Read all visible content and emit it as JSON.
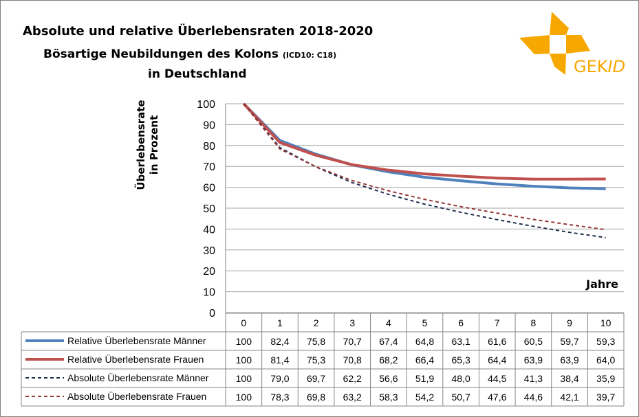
{
  "logo": {
    "text": "GEKID",
    "color": "#f7a800"
  },
  "chart_data": {
    "type": "line",
    "title": "Absolute und relative Überlebensraten 2018-2020",
    "subtitle": "Bösartige Neubildungen des Kolons",
    "subtitle_code": "(ICD10: C18)",
    "subtitle2": "in Deutschland",
    "ylabel": "Überlebensrate in Prozent",
    "ylabel_line1": "Überlebensrate",
    "ylabel_line2": "in Prozent",
    "xlabel": "Jahre",
    "ylim": [
      0,
      100
    ],
    "yticks": [
      "0",
      "10",
      "20",
      "30",
      "40",
      "50",
      "60",
      "70",
      "80",
      "90",
      "100"
    ],
    "grid": true,
    "legend": "data-table",
    "categories": [
      "0",
      "1",
      "2",
      "3",
      "4",
      "5",
      "6",
      "7",
      "8",
      "9",
      "10"
    ],
    "series": [
      {
        "name": "Relative Überlebensrate Männer",
        "color": "#4f81bd",
        "style": "solid",
        "values": [
          100,
          82.4,
          75.8,
          70.7,
          67.4,
          64.8,
          63.1,
          61.6,
          60.5,
          59.7,
          59.3
        ],
        "labels": [
          "100",
          "82,4",
          "75,8",
          "70,7",
          "67,4",
          "64,8",
          "63,1",
          "61,6",
          "60,5",
          "59,7",
          "59,3"
        ]
      },
      {
        "name": "Relative Überlebensrate Frauen",
        "color": "#c0504d",
        "style": "solid",
        "values": [
          100,
          81.4,
          75.3,
          70.8,
          68.2,
          66.4,
          65.3,
          64.4,
          63.9,
          63.9,
          64.0
        ],
        "labels": [
          "100",
          "81,4",
          "75,3",
          "70,8",
          "68,2",
          "66,4",
          "65,3",
          "64,4",
          "63,9",
          "63,9",
          "64,0"
        ]
      },
      {
        "name": "Absolute Überlebensrate Männer",
        "color": "#1f2d4d",
        "style": "dashed",
        "values": [
          100,
          79.0,
          69.7,
          62.2,
          56.6,
          51.9,
          48.0,
          44.5,
          41.3,
          38.4,
          35.9
        ],
        "labels": [
          "100",
          "79,0",
          "69,7",
          "62,2",
          "56,6",
          "51,9",
          "48,0",
          "44,5",
          "41,3",
          "38,4",
          "35,9"
        ]
      },
      {
        "name": "Absolute Überlebensrate Frauen",
        "color": "#953735",
        "style": "dashed",
        "values": [
          100,
          78.3,
          69.8,
          63.2,
          58.3,
          54.2,
          50.7,
          47.6,
          44.6,
          42.1,
          39.7
        ],
        "labels": [
          "100",
          "78,3",
          "69,8",
          "63,2",
          "58,3",
          "54,2",
          "50,7",
          "47,6",
          "44,6",
          "42,1",
          "39,7"
        ]
      }
    ]
  }
}
